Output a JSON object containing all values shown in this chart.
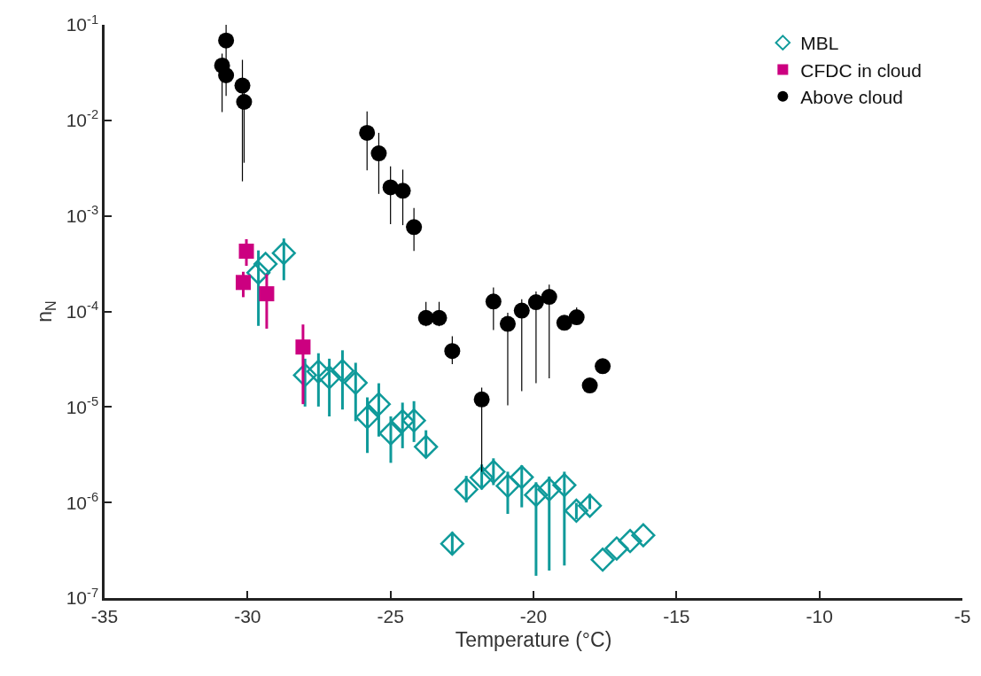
{
  "chart_data": {
    "type": "scatter",
    "xlabel": "Temperature (°C)",
    "ylabel": "n$_{N}$",
    "xlim": [
      -35,
      -5
    ],
    "xticks": [
      -35,
      -30,
      -25,
      -20,
      -15,
      -10,
      -5
    ],
    "ylim": [
      1e-07,
      0.1
    ],
    "log": true,
    "yticks": [
      {
        "value": 1e-07,
        "label": "10$^{-7}$"
      },
      {
        "value": 1e-06,
        "label": "10$^{-6}$"
      },
      {
        "value": 1e-05,
        "label": "10$^{-5}$"
      },
      {
        "value": 0.0001,
        "label": "10$^{-4}$"
      },
      {
        "value": 0.001,
        "label": "10$^{-3}$"
      },
      {
        "value": 0.01,
        "label": "10$^{-2}$"
      },
      {
        "value": 0.1,
        "label": "10$^{-1}$"
      }
    ],
    "legend": "top right",
    "series": [
      {
        "name": "MBL",
        "color": "#0f9a9a",
        "marker": "diamond",
        "x": [
          -29.62,
          -29.37,
          -28.73,
          -27.99,
          -27.52,
          -27.14,
          -26.68,
          -26.22,
          -25.81,
          -25.41,
          -24.99,
          -24.58,
          -24.18,
          -23.76,
          -22.84,
          -22.35,
          -21.81,
          -21.4,
          -20.9,
          -20.41,
          -19.91,
          -19.45,
          -18.92,
          -18.5,
          -18.03,
          -17.58,
          -17.09,
          -16.62,
          -16.16
        ],
        "values": [
          0.000254,
          0.000314,
          0.000408,
          2.15e-05,
          2.35e-05,
          2.04e-05,
          2.38e-05,
          1.79e-05,
          7.8e-06,
          1.07e-05,
          5.3e-06,
          7.1e-06,
          7.2e-06,
          3.83e-06,
          3.7e-07,
          1.37e-06,
          1.82e-06,
          2.1e-06,
          1.49e-06,
          1.84e-06,
          1.2e-06,
          1.37e-06,
          1.52e-06,
          8.2e-07,
          9.25e-07,
          2.52e-07,
          3.3e-07,
          3.95e-07,
          4.54e-07
        ],
        "errors": [
          [
            7.06e-05,
            0.000435
          ],
          null,
          [
            0.000212,
            0.00058
          ],
          [
            1.01e-05,
            3.2e-05
          ],
          [
            1.01e-05,
            3.65e-05
          ],
          [
            7.96e-06,
            3.2e-05
          ],
          [
            9.4e-06,
            3.92e-05
          ],
          [
            7.1e-06,
            2.9e-05
          ],
          [
            3.3e-06,
            1.26e-05
          ],
          [
            4.9e-06,
            1.77e-05
          ],
          [
            2.6e-06,
            7.96e-06
          ],
          [
            3.7e-06,
            1.11e-05
          ],
          [
            4.3e-06,
            1.15e-05
          ],
          [
            3e-06,
            5.7e-06
          ],
          [
            2.9e-07,
            4.9e-07
          ],
          [
            1e-06,
            1.9e-06
          ],
          [
            1.37e-06,
            2.5e-06
          ],
          [
            1.52e-06,
            2.9e-06
          ],
          [
            7.6e-07,
            2.1e-06
          ],
          [
            8.9e-07,
            2.45e-06
          ],
          [
            1.71e-07,
            1.63e-06
          ],
          [
            1.94e-07,
            1.87e-06
          ],
          [
            2.19e-07,
            2.1e-06
          ],
          [
            6.7e-07,
            9.9e-07
          ],
          [
            8.5e-07,
            1.23e-06
          ],
          null,
          null,
          null,
          null
        ]
      },
      {
        "name": "CFDC in cloud",
        "color": "#cc0080",
        "marker": "square",
        "x": [
          -30.04,
          -30.15,
          -29.33,
          -28.06
        ],
        "values": [
          0.000427,
          0.000201,
          0.000153,
          4.24e-05
        ],
        "errors": [
          [
            0.0003,
            0.00057
          ],
          [
            0.000141,
            0.00026
          ],
          [
            6.6e-05,
            0.000245
          ],
          [
            1.07e-05,
            7.3e-05
          ]
        ]
      },
      {
        "name": "Above cloud",
        "color": "#000000",
        "marker": "circle",
        "x": [
          -30.89,
          -30.75,
          -30.75,
          -30.18,
          -30.12,
          -25.82,
          -25.41,
          -25.0,
          -24.57,
          -24.18,
          -23.76,
          -23.3,
          -22.84,
          -21.81,
          -21.4,
          -20.9,
          -20.41,
          -19.91,
          -19.45,
          -18.92,
          -18.49,
          -18.03,
          -17.58
        ],
        "values": [
          0.0375,
          0.0686,
          0.0296,
          0.0231,
          0.0156,
          0.0074,
          0.00452,
          0.00199,
          0.00183,
          0.000764,
          8.55e-05,
          8.55e-05,
          3.85e-05,
          1.2e-05,
          0.000127,
          7.4e-05,
          0.000102,
          0.000125,
          0.000142,
          7.6e-05,
          8.7e-05,
          1.68e-05,
          2.67e-05
        ],
        "errors": [
          [
            0.0122,
            0.05
          ],
          [
            0.018,
            0.1
          ],
          null,
          [
            0.0023,
            0.043
          ],
          [
            0.0036,
            0.025
          ],
          [
            0.003,
            0.0124
          ],
          [
            0.0017,
            0.0074
          ],
          [
            0.00082,
            0.0033
          ],
          [
            0.0008,
            0.00305
          ],
          [
            0.00043,
            0.00121
          ],
          [
            7e-05,
            0.000126
          ],
          [
            7e-05,
            0.000126
          ],
          [
            2.8e-05,
            5.5e-05
          ],
          [
            2.1e-06,
            1.59e-05
          ],
          [
            6.4e-05,
            0.000178
          ],
          [
            1.04e-05,
            9.7e-05
          ],
          [
            1.46e-05,
            0.000134
          ],
          [
            1.77e-05,
            0.000162
          ],
          [
            1.99e-05,
            0.000191
          ],
          null,
          [
            7.5e-05,
            0.00011
          ],
          null,
          null
        ]
      }
    ]
  }
}
